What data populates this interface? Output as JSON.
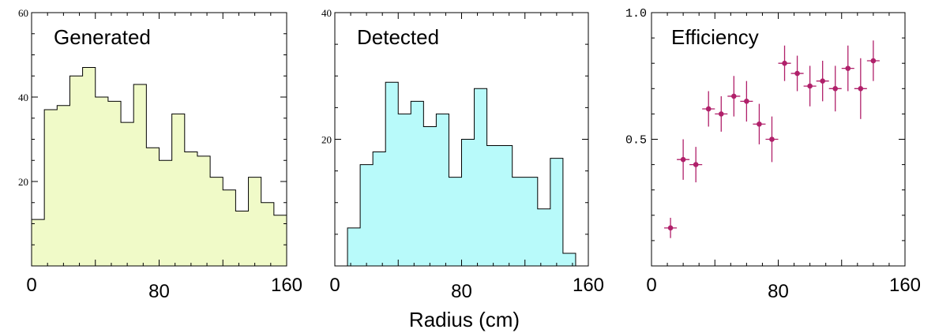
{
  "xaxis_title": "Radius (cm)",
  "chart_data": [
    {
      "type": "bar",
      "title": "Generated",
      "fill": "#f0fac8",
      "xlim": [
        0,
        160
      ],
      "ylim": [
        0,
        60
      ],
      "xticks": [
        0,
        80,
        160
      ],
      "xtick_labels": [
        "0",
        "80",
        "160"
      ],
      "yticks": [
        20,
        40,
        60
      ],
      "ytick_labels": [
        "20",
        "40",
        "60"
      ],
      "bin_edges": [
        0,
        8,
        16,
        24,
        32,
        40,
        48,
        56,
        64,
        72,
        80,
        88,
        96,
        104,
        112,
        120,
        128,
        136,
        144,
        152,
        160
      ],
      "values": [
        11,
        37,
        38,
        45,
        47,
        40,
        39,
        34,
        43,
        28,
        25,
        36,
        27,
        26,
        21,
        18,
        13,
        21,
        15,
        12
      ]
    },
    {
      "type": "bar",
      "title": "Detected",
      "fill": "#b8fafa",
      "xlim": [
        0,
        160
      ],
      "ylim": [
        0,
        40
      ],
      "xticks": [
        0,
        80,
        160
      ],
      "xtick_labels": [
        "0",
        "80",
        "160"
      ],
      "yticks": [
        20,
        40
      ],
      "ytick_labels": [
        "20",
        "40"
      ],
      "bin_edges": [
        8,
        16,
        24,
        32,
        40,
        48,
        56,
        64,
        72,
        80,
        88,
        96,
        104,
        112,
        120,
        128,
        136,
        144,
        152
      ],
      "values": [
        6,
        16,
        18,
        29,
        24,
        26,
        22,
        24,
        14,
        20,
        28,
        19,
        19,
        14,
        14,
        9,
        17,
        2
      ]
    },
    {
      "type": "scatter",
      "title": "Efficiency",
      "marker_color": "#b0206a",
      "xlim": [
        0,
        160
      ],
      "ylim": [
        0,
        1.0
      ],
      "xticks": [
        0,
        80,
        160
      ],
      "xtick_labels": [
        "0",
        "80",
        "160"
      ],
      "yticks": [
        0.5,
        1.0
      ],
      "ytick_labels": [
        "0.5",
        "1.0"
      ],
      "x": [
        12,
        20,
        28,
        36,
        44,
        52,
        60,
        68,
        76,
        84,
        92,
        100,
        108,
        116,
        124,
        132,
        140
      ],
      "y": [
        0.15,
        0.42,
        0.4,
        0.62,
        0.6,
        0.67,
        0.65,
        0.56,
        0.5,
        0.8,
        0.76,
        0.71,
        0.73,
        0.7,
        0.78,
        0.7,
        0.81
      ],
      "yerr": [
        0.04,
        0.08,
        0.07,
        0.07,
        0.07,
        0.08,
        0.08,
        0.08,
        0.09,
        0.07,
        0.07,
        0.08,
        0.08,
        0.09,
        0.09,
        0.12,
        0.08
      ],
      "xerr": 4
    }
  ]
}
